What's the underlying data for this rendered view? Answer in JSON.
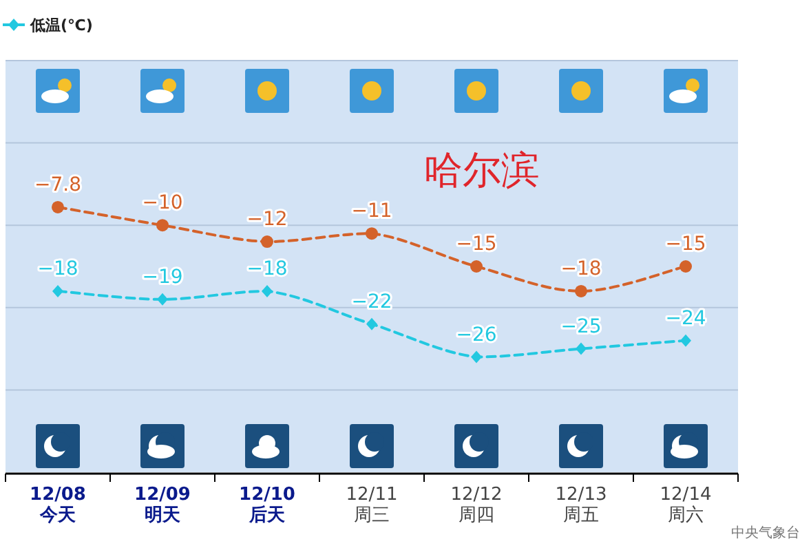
{
  "chart_data": {
    "type": "line",
    "title": "哈尔滨",
    "categories": [
      "12/08\n今天",
      "12/09\n明天",
      "12/10\n后天",
      "12/11\n周三",
      "12/12\n周四",
      "12/13\n周五",
      "12/14\n周六"
    ],
    "series": [
      {
        "color": "#d4622a",
        "values": [
          -7.8,
          -10,
          -12,
          -11,
          -15,
          -18,
          -15
        ],
        "marker": "circle",
        "line_style": "dashed"
      },
      {
        "name": "低温(℃)",
        "color": "#22c8e0",
        "values": [
          -18,
          -19,
          -18,
          -22,
          -26,
          -25,
          -24
        ],
        "marker": "diamond",
        "line_style": "dashed"
      }
    ],
    "ylim": [
      -40,
      10
    ],
    "yticks": [
      {
        "value": 10,
        "label": null
      },
      {
        "value": 0,
        "label": null
      },
      {
        "value": -10,
        "label": null
      },
      {
        "value": -20,
        "label": null
      },
      {
        "value": -30,
        "label": null
      }
    ],
    "grid": "y",
    "data_labels": true,
    "legend": "top left",
    "tick_labels": "x",
    "annotations": [
      "中央气象台"
    ]
  }
}
